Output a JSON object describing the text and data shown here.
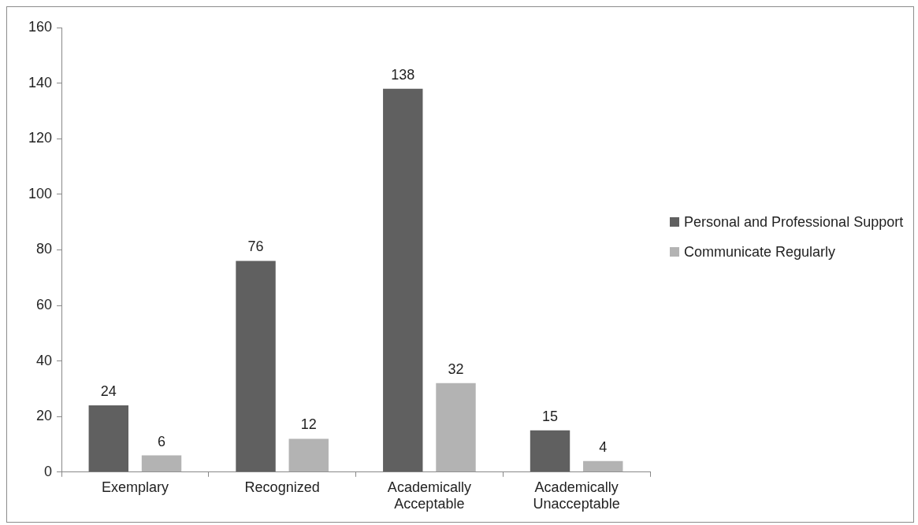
{
  "chart_data": {
    "type": "bar",
    "categories": [
      "Exemplary",
      "Recognized",
      "Academically Acceptable",
      "Academically Unacceptable"
    ],
    "series": [
      {
        "name": "Personal and Professional Support",
        "color": "#606060",
        "values": [
          24,
          76,
          138,
          15
        ]
      },
      {
        "name": "Communicate Regularly",
        "color": "#b3b3b3",
        "values": [
          6,
          12,
          32,
          4
        ]
      }
    ],
    "ylim": [
      0,
      160
    ],
    "yticks": [
      0,
      20,
      40,
      60,
      80,
      100,
      120,
      140,
      160
    ],
    "grid": false,
    "legend": "right",
    "data_labels": true
  }
}
